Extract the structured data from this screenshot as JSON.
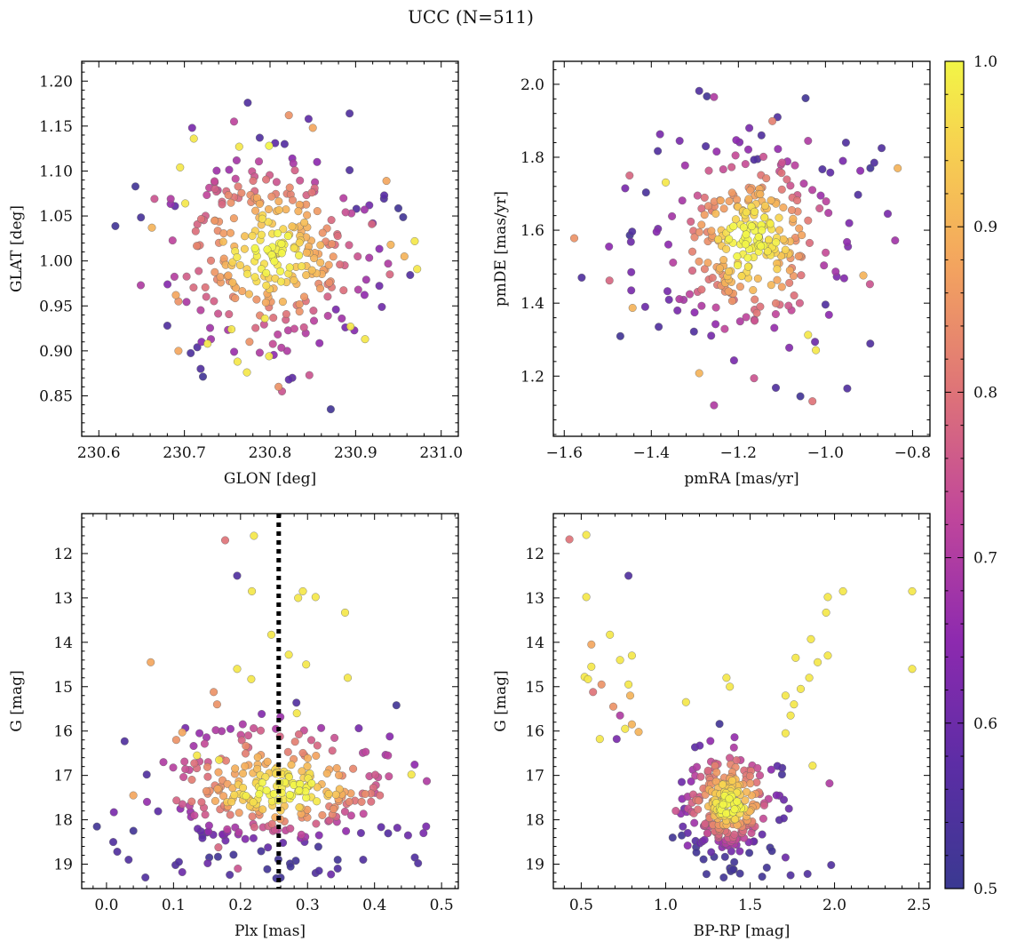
{
  "figure": {
    "title": "UCC (N=511)"
  },
  "colorbar": {
    "range": [
      0.5,
      1.0
    ],
    "ticks": [
      "0.5",
      "0.6",
      "0.7",
      "0.8",
      "0.9",
      "1.0"
    ],
    "colormap": "plasma (truncated)"
  },
  "chart_data": [
    {
      "type": "scatter",
      "xlabel": "GLON [deg]",
      "ylabel": "GLAT [deg]",
      "xlim": [
        230.58,
        231.02
      ],
      "ylim": [
        0.805,
        1.222
      ],
      "yinvert": false,
      "xticks": [
        230.6,
        230.7,
        230.8,
        230.9,
        231.0
      ],
      "xtick_labels": [
        "230.6",
        "230.7",
        "230.8",
        "230.9",
        "231.0"
      ],
      "yticks": [
        0.85,
        0.9,
        0.95,
        1.0,
        1.05,
        1.1,
        1.15,
        1.2
      ],
      "ytick_labels": [
        "0.85",
        "0.90",
        "0.95",
        "1.00",
        "1.05",
        "1.10",
        "1.15",
        "1.20"
      ],
      "cloud": {
        "n": 290,
        "cx": 230.8,
        "cy": 1.01,
        "sx": 0.055,
        "sy": 0.05,
        "representative": true
      },
      "points": [
        [
          230.774,
          1.176,
          0.55
        ],
        [
          230.893,
          1.164,
          0.55
        ],
        [
          230.822,
          1.162,
          0.85
        ],
        [
          230.845,
          1.158,
          0.58
        ],
        [
          230.758,
          1.155,
          0.72
        ],
        [
          230.709,
          1.148,
          0.62
        ],
        [
          230.85,
          1.148,
          0.88
        ],
        [
          230.711,
          1.136,
          0.98
        ],
        [
          230.788,
          1.137,
          0.55
        ],
        [
          230.806,
          1.131,
          0.58
        ],
        [
          230.817,
          1.13,
          0.56
        ],
        [
          230.799,
          1.128,
          1.0
        ],
        [
          230.764,
          1.127,
          0.98
        ],
        [
          230.826,
          1.114,
          0.65
        ],
        [
          230.855,
          1.11,
          0.65
        ],
        [
          230.893,
          1.101,
          0.55
        ],
        [
          230.695,
          1.104,
          0.98
        ],
        [
          230.665,
          1.069,
          0.75
        ],
        [
          230.684,
          1.069,
          0.7
        ],
        [
          230.689,
          1.061,
          0.58
        ],
        [
          230.701,
          1.064,
          0.98
        ],
        [
          230.662,
          1.037,
          0.9
        ],
        [
          230.936,
          1.089,
          0.88
        ],
        [
          230.919,
          1.041,
          0.78
        ],
        [
          230.901,
          1.058,
          0.55
        ],
        [
          230.941,
          1.018,
          0.9
        ],
        [
          230.969,
          1.022,
          0.98
        ],
        [
          230.957,
          1.005,
          0.9
        ],
        [
          230.938,
          0.997,
          0.7
        ],
        [
          230.972,
          0.991,
          0.98
        ],
        [
          230.94,
          0.985,
          0.78
        ],
        [
          230.649,
          0.973,
          0.7
        ],
        [
          230.69,
          0.962,
          0.88
        ],
        [
          230.693,
          0.955,
          0.85
        ],
        [
          230.68,
          0.928,
          0.55
        ],
        [
          230.693,
          0.9,
          0.88
        ],
        [
          230.727,
          0.908,
          0.98
        ],
        [
          230.715,
          0.904,
          0.55
        ],
        [
          230.72,
          0.91,
          0.65
        ],
        [
          230.731,
          0.913,
          0.68
        ],
        [
          230.719,
          0.88,
          0.55
        ],
        [
          230.755,
          0.924,
          0.98
        ],
        [
          230.762,
          0.888,
          0.98
        ],
        [
          230.773,
          0.876,
          0.98
        ],
        [
          230.794,
          0.936,
          0.98
        ],
        [
          230.81,
          0.86,
          0.85
        ],
        [
          230.814,
          0.855,
          0.75
        ],
        [
          230.826,
          0.87,
          0.58
        ],
        [
          230.822,
          0.868,
          0.58
        ],
        [
          230.846,
          0.873,
          0.75
        ],
        [
          230.911,
          0.913,
          0.98
        ],
        [
          230.894,
          0.927,
          0.98
        ],
        [
          230.877,
          0.946,
          0.62
        ],
        [
          230.888,
          0.926,
          0.62
        ],
        [
          230.903,
          0.968,
          0.7
        ],
        [
          230.788,
          0.898,
          0.7
        ],
        [
          230.799,
          0.894,
          0.98
        ],
        [
          230.82,
          0.9,
          0.7
        ],
        [
          230.776,
          0.91,
          0.85
        ]
      ]
    },
    {
      "type": "scatter",
      "xlabel": "pmRA [mas/yr]",
      "ylabel": "pmDE [mas/yr]",
      "xlim": [
        -1.625,
        -0.76
      ],
      "ylim": [
        1.035,
        2.063
      ],
      "yinvert": false,
      "xticks": [
        -1.6,
        -1.4,
        -1.2,
        -1.0,
        -0.8
      ],
      "xtick_labels": [
        "−1.6",
        "−1.4",
        "−1.2",
        "−1.0",
        "−0.8"
      ],
      "yticks": [
        1.2,
        1.4,
        1.6,
        1.8,
        2.0
      ],
      "ytick_labels": [
        "1.2",
        "1.4",
        "1.6",
        "1.8",
        "2.0"
      ],
      "cloud": {
        "n": 290,
        "cx": -1.17,
        "cy": 1.57,
        "sx": 0.09,
        "sy": 0.12,
        "representative": true
      },
      "points": [
        [
          -1.29,
          1.982,
          0.55
        ],
        [
          -1.256,
          1.965,
          0.7
        ],
        [
          -1.11,
          1.91,
          0.55
        ],
        [
          -1.122,
          1.899,
          0.82
        ],
        [
          -1.175,
          1.88,
          0.62
        ],
        [
          -1.147,
          1.86,
          0.55
        ],
        [
          -1.38,
          1.863,
          0.62
        ],
        [
          -1.04,
          1.845,
          0.7
        ],
        [
          -0.953,
          1.84,
          0.55
        ],
        [
          -1.205,
          1.847,
          0.65
        ],
        [
          -1.335,
          1.845,
          0.62
        ],
        [
          -0.871,
          1.825,
          0.55
        ],
        [
          -1.275,
          1.83,
          0.55
        ],
        [
          -1.385,
          1.817,
          0.55
        ],
        [
          -1.156,
          1.795,
          0.55
        ],
        [
          -1.164,
          1.793,
          0.55
        ],
        [
          -0.96,
          1.79,
          0.62
        ],
        [
          -0.834,
          1.77,
          0.9
        ],
        [
          -1.007,
          1.767,
          0.55
        ],
        [
          -0.888,
          1.785,
          0.55
        ],
        [
          -1.45,
          1.75,
          0.78
        ],
        [
          -1.46,
          1.715,
          0.62
        ],
        [
          -1.367,
          1.731,
          0.98
        ],
        [
          -0.92,
          1.763,
          0.65
        ],
        [
          -0.925,
          1.697,
          0.55
        ],
        [
          -0.857,
          1.645,
          0.62
        ],
        [
          -0.84,
          1.572,
          0.68
        ],
        [
          -1.577,
          1.578,
          0.85
        ],
        [
          -1.497,
          1.555,
          0.65
        ],
        [
          -1.444,
          1.596,
          0.55
        ],
        [
          -1.447,
          1.568,
          0.6
        ],
        [
          -1.56,
          1.47,
          0.55
        ],
        [
          -1.496,
          1.462,
          0.78
        ],
        [
          -1.446,
          1.485,
          0.62
        ],
        [
          -1.446,
          1.435,
          0.62
        ],
        [
          -1.443,
          1.387,
          0.9
        ],
        [
          -1.414,
          1.39,
          0.6
        ],
        [
          -1.383,
          1.335,
          0.55
        ],
        [
          -1.29,
          1.208,
          0.9
        ],
        [
          -1.256,
          1.12,
          0.7
        ],
        [
          -1.21,
          1.243,
          0.62
        ],
        [
          -1.164,
          1.194,
          0.75
        ],
        [
          -1.114,
          1.168,
          0.55
        ],
        [
          -1.03,
          1.131,
          0.8
        ],
        [
          -0.95,
          1.166,
          0.55
        ],
        [
          -1.022,
          1.271,
          0.98
        ],
        [
          -1.024,
          1.294,
          0.6
        ],
        [
          -1.04,
          1.313,
          0.98
        ],
        [
          -0.992,
          1.368,
          0.65
        ],
        [
          -0.898,
          1.452,
          0.75
        ],
        [
          -0.913,
          1.476,
          0.9
        ],
        [
          -0.897,
          1.289,
          0.55
        ],
        [
          -1.196,
          1.35,
          0.7
        ],
        [
          -1.302,
          1.322,
          0.55
        ],
        [
          -1.0,
          1.396,
          0.55
        ],
        [
          -1.34,
          1.38,
          0.62
        ]
      ]
    },
    {
      "type": "scatter",
      "xlabel": "Plx [mas]",
      "ylabel": "G [mag]",
      "xlim": [
        -0.037,
        0.525
      ],
      "ylim": [
        11.1,
        19.55
      ],
      "yinvert": true,
      "xticks": [
        0.0,
        0.1,
        0.2,
        0.3,
        0.4,
        0.5
      ],
      "xtick_labels": [
        "0.0",
        "0.1",
        "0.2",
        "0.3",
        "0.4",
        "0.5"
      ],
      "yticks": [
        12,
        13,
        14,
        15,
        16,
        17,
        18,
        19
      ],
      "ytick_labels": [
        "12",
        "13",
        "14",
        "15",
        "16",
        "17",
        "18",
        "19"
      ],
      "vline": {
        "x": 0.257,
        "style": "dotted"
      },
      "cloud": {
        "n": 300,
        "cx": 0.26,
        "cy": 17.4,
        "sx": 0.085,
        "sy": 0.75,
        "representative": true
      },
      "points": [
        [
          0.177,
          11.7,
          0.8
        ],
        [
          0.22,
          11.6,
          0.98
        ],
        [
          0.195,
          12.5,
          0.55
        ],
        [
          0.217,
          12.85,
          0.98
        ],
        [
          0.293,
          12.85,
          0.98
        ],
        [
          0.312,
          12.98,
          0.98
        ],
        [
          0.286,
          13.0,
          0.98
        ],
        [
          0.356,
          13.33,
          0.98
        ],
        [
          0.246,
          13.83,
          0.98
        ],
        [
          0.066,
          14.45,
          0.88
        ],
        [
          0.272,
          14.28,
          0.98
        ],
        [
          0.298,
          14.5,
          0.98
        ],
        [
          0.195,
          14.6,
          0.98
        ],
        [
          0.216,
          14.83,
          0.98
        ],
        [
          0.36,
          14.8,
          0.98
        ],
        [
          0.16,
          15.12,
          0.85
        ],
        [
          0.165,
          15.4,
          0.85
        ],
        [
          0.284,
          15.6,
          0.98
        ],
        [
          0.163,
          15.98,
          0.7
        ],
        [
          0.027,
          16.23,
          0.55
        ],
        [
          0.113,
          16.03,
          0.88
        ],
        [
          0.104,
          16.2,
          0.85
        ],
        [
          0.085,
          16.7,
          0.7
        ],
        [
          0.135,
          16.55,
          0.98
        ],
        [
          0.168,
          16.65,
          0.98
        ],
        [
          0.06,
          16.98,
          0.55
        ],
        [
          0.455,
          16.98,
          0.98
        ],
        [
          0.478,
          17.13,
          0.7
        ],
        [
          0.04,
          17.45,
          0.88
        ],
        [
          0.011,
          17.83,
          0.62
        ],
        [
          0.01,
          18.5,
          0.55
        ],
        [
          0.016,
          18.72,
          0.55
        ],
        [
          0.033,
          18.9,
          0.55
        ],
        [
          0.058,
          19.3,
          0.55
        ],
        [
          0.103,
          19.02,
          0.55
        ],
        [
          0.108,
          18.95,
          0.55
        ],
        [
          0.113,
          19.18,
          0.6
        ],
        [
          0.151,
          18.98,
          0.6
        ],
        [
          0.167,
          18.62,
          0.78
        ],
        [
          0.184,
          19.24,
          0.55
        ],
        [
          0.196,
          19.1,
          0.75
        ],
        [
          0.312,
          19.2,
          0.55
        ],
        [
          0.317,
          19.15,
          0.55
        ],
        [
          0.335,
          19.23,
          0.6
        ],
        [
          0.345,
          19.1,
          0.55
        ],
        [
          0.383,
          18.9,
          0.55
        ],
        [
          0.46,
          18.85,
          0.55
        ],
        [
          0.465,
          18.98,
          0.55
        ],
        [
          0.477,
          18.15,
          0.62
        ],
        [
          0.473,
          18.3,
          0.62
        ],
        [
          0.434,
          18.18,
          0.6
        ],
        [
          0.45,
          18.35,
          0.6
        ]
      ]
    },
    {
      "type": "scatter",
      "xlabel": "BP-RP [mag]",
      "ylabel": "G [mag]",
      "xlim": [
        0.335,
        2.565
      ],
      "ylim": [
        11.1,
        19.55
      ],
      "yinvert": true,
      "xticks": [
        0.5,
        1.0,
        1.5,
        2.0,
        2.5
      ],
      "xtick_labels": [
        "0.5",
        "1.0",
        "1.5",
        "2.0",
        "2.5"
      ],
      "yticks": [
        12,
        13,
        14,
        15,
        16,
        17,
        18,
        19
      ],
      "ytick_labels": [
        "12",
        "13",
        "14",
        "15",
        "16",
        "17",
        "18",
        "19"
      ],
      "cloud": {
        "n": 300,
        "cx": 1.38,
        "cy": 17.7,
        "sx": 0.12,
        "sy": 0.65,
        "representative": true
      },
      "points": [
        [
          0.43,
          11.68,
          0.8
        ],
        [
          0.53,
          11.58,
          0.98
        ],
        [
          0.78,
          12.5,
          0.55
        ],
        [
          0.53,
          12.98,
          0.98
        ],
        [
          2.05,
          12.85,
          0.98
        ],
        [
          2.46,
          12.85,
          0.98
        ],
        [
          1.96,
          12.98,
          0.98
        ],
        [
          1.95,
          13.33,
          0.98
        ],
        [
          0.56,
          14.05,
          0.88
        ],
        [
          0.67,
          13.83,
          0.98
        ],
        [
          0.8,
          14.3,
          0.98
        ],
        [
          0.73,
          14.4,
          0.98
        ],
        [
          0.56,
          14.55,
          0.98
        ],
        [
          0.52,
          14.78,
          0.98
        ],
        [
          0.54,
          14.83,
          0.98
        ],
        [
          0.62,
          14.95,
          0.85
        ],
        [
          0.57,
          15.12,
          0.8
        ],
        [
          0.78,
          14.95,
          0.98
        ],
        [
          0.79,
          15.2,
          0.9
        ],
        [
          0.69,
          15.45,
          0.85
        ],
        [
          0.73,
          15.65,
          0.7
        ],
        [
          0.61,
          16.18,
          0.98
        ],
        [
          0.71,
          16.18,
          0.62
        ],
        [
          0.76,
          15.95,
          0.98
        ],
        [
          0.8,
          15.85,
          0.9
        ],
        [
          0.84,
          16.02,
          0.9
        ],
        [
          1.12,
          15.35,
          0.98
        ],
        [
          1.36,
          14.8,
          0.98
        ],
        [
          1.38,
          15.0,
          0.98
        ],
        [
          1.86,
          13.93,
          0.98
        ],
        [
          1.77,
          14.35,
          0.98
        ],
        [
          1.9,
          14.45,
          0.98
        ],
        [
          1.96,
          14.3,
          0.98
        ],
        [
          1.85,
          14.8,
          0.98
        ],
        [
          1.8,
          15.05,
          0.98
        ],
        [
          1.71,
          15.2,
          0.98
        ],
        [
          1.76,
          15.4,
          0.98
        ],
        [
          1.74,
          15.65,
          0.98
        ],
        [
          1.71,
          16.05,
          0.98
        ],
        [
          1.87,
          16.78,
          0.98
        ],
        [
          1.97,
          17.18,
          0.7
        ],
        [
          1.98,
          19.02,
          0.55
        ],
        [
          1.84,
          19.22,
          0.55
        ],
        [
          1.74,
          19.25,
          0.55
        ],
        [
          1.71,
          18.85,
          0.6
        ],
        [
          1.13,
          18.58,
          0.65
        ],
        [
          1.11,
          17.75,
          0.6
        ],
        [
          1.06,
          17.8,
          0.75
        ],
        [
          1.73,
          17.75,
          0.6
        ],
        [
          1.7,
          17.55,
          0.6
        ],
        [
          2.46,
          14.6,
          0.98
        ]
      ]
    }
  ]
}
